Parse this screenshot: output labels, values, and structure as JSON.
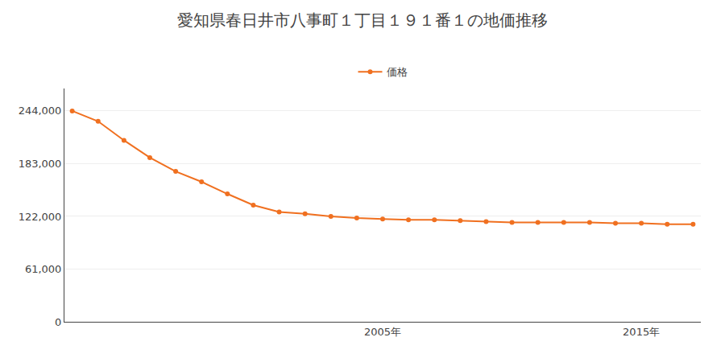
{
  "chart_data": {
    "type": "line",
    "title": "愛知県春日井市八事町１丁目１９１番１の地価推移",
    "x": [
      1993,
      1994,
      1995,
      1996,
      1997,
      1998,
      1999,
      2000,
      2001,
      2002,
      2003,
      2004,
      2005,
      2006,
      2007,
      2008,
      2009,
      2010,
      2011,
      2012,
      2013,
      2014,
      2015,
      2016,
      2017
    ],
    "series": [
      {
        "name": "価格",
        "color": "#f07020",
        "marker": "circle",
        "values": [
          244000,
          232000,
          210000,
          190000,
          174000,
          162000,
          148000,
          135000,
          127000,
          125000,
          122000,
          120000,
          119000,
          118000,
          118000,
          117000,
          116000,
          115000,
          115000,
          115000,
          115000,
          114000,
          114000,
          113000,
          113000
        ]
      }
    ],
    "xlim": [
      1992.7,
      2017.3
    ],
    "xticks": [
      {
        "value": 2005,
        "label": "2005年"
      },
      {
        "value": 2015,
        "label": "2015年"
      }
    ],
    "ylim": [
      0,
      270000
    ],
    "yticks": [
      0,
      {
        "value": 61000,
        "label": "61,000"
      },
      {
        "value": 122000,
        "label": "122,000"
      },
      {
        "value": 183000,
        "label": "183,000"
      },
      {
        "value": 244000,
        "label": "244,000"
      }
    ],
    "grid": true,
    "legend": "top"
  }
}
